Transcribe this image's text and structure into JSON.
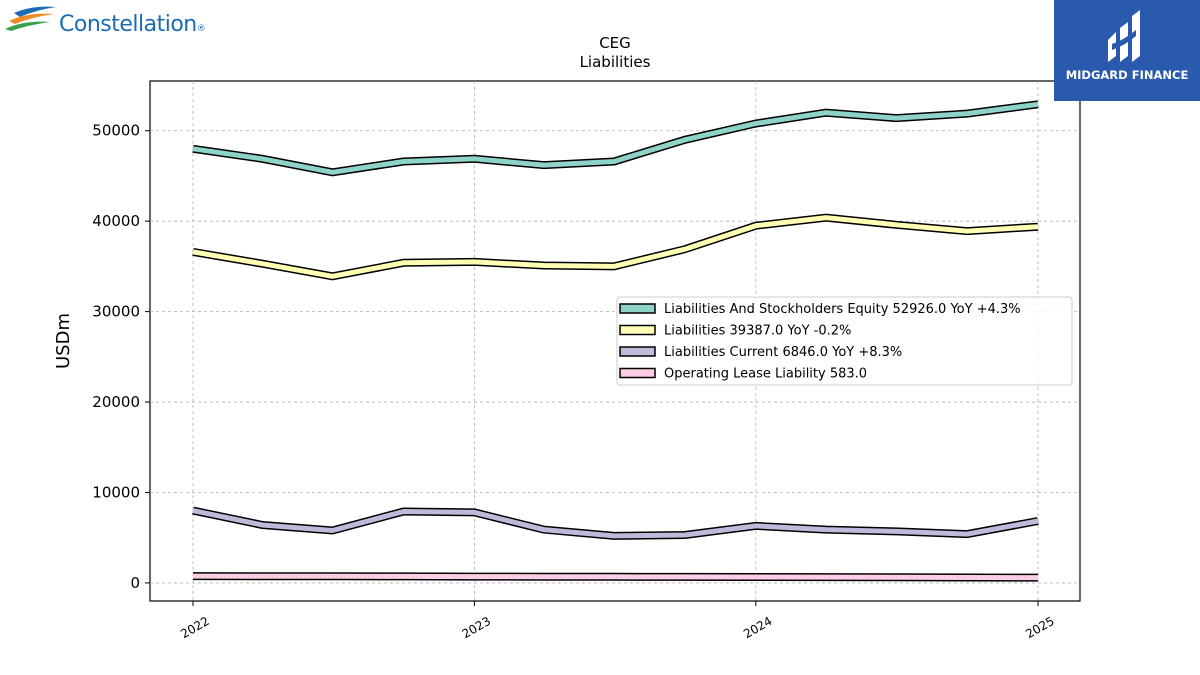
{
  "branding": {
    "left_logo_text": "Constellation",
    "left_logo_mark": "®",
    "right_logo_text": "MIDGARD FINANCE",
    "right_logo_color": "#2a5aad"
  },
  "chart_data": {
    "type": "line",
    "title": "CEG",
    "subtitle": "Liabilities",
    "xlabel": "",
    "ylabel": "USDm",
    "x": [
      "2022-01-01",
      "2022-04-01",
      "2022-07-01",
      "2022-10-01",
      "2023-01-01",
      "2023-04-01",
      "2023-07-01",
      "2023-10-01",
      "2024-01-01",
      "2024-04-01",
      "2024-07-01",
      "2024-10-01",
      "2025-01-01"
    ],
    "xticks": [
      "2022",
      "2023",
      "2024",
      "2025"
    ],
    "ylim": [
      -2000,
      55500
    ],
    "yticks": [
      0,
      10000,
      20000,
      30000,
      40000,
      50000
    ],
    "grid": true,
    "legend_position": "center-right",
    "series": [
      {
        "name": "Liabilities And Stockholders Equity  52926.0 YoY +4.3%",
        "color": "#8dd3c7",
        "values": [
          48000,
          46900,
          45400,
          46600,
          46900,
          46200,
          46600,
          49000,
          50800,
          52000,
          51400,
          51900,
          52926
        ]
      },
      {
        "name": "Liabilities  39387.0 YoY -0.2%",
        "color": "#ffffb3",
        "values": [
          36600,
          35300,
          33900,
          35400,
          35500,
          35100,
          35000,
          36900,
          39500,
          40400,
          39600,
          38900,
          39387
        ]
      },
      {
        "name": "Liabilities Current  6846.0 YoY +8.3%",
        "color": "#bebada",
        "values": [
          8000,
          6400,
          5800,
          7900,
          7800,
          5900,
          5200,
          5300,
          6300,
          5900,
          5700,
          5400,
          6846
        ]
      },
      {
        "name": "Operating Lease Liability  583.0",
        "color": "#fccde5",
        "values": [
          750,
          745,
          730,
          715,
          700,
          690,
          680,
          670,
          655,
          640,
          620,
          600,
          583
        ]
      }
    ]
  }
}
